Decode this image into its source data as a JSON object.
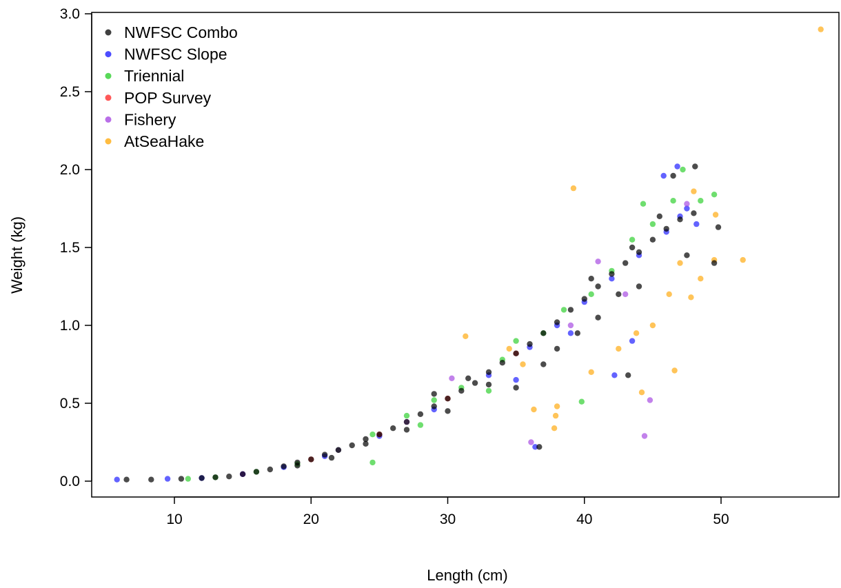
{
  "chart_data": {
    "type": "scatter",
    "title": "",
    "xlabel": "Length (cm)",
    "ylabel": "Weight (kg)",
    "xlim": [
      5,
      57
    ],
    "ylim": [
      -0.1,
      3.0
    ],
    "x_ticks": [
      "10",
      "20",
      "30",
      "40",
      "50"
    ],
    "x_tick_values": [
      10,
      20,
      30,
      40,
      50
    ],
    "y_ticks": [
      "0.0",
      "0.5",
      "1.0",
      "1.5",
      "2.0",
      "2.5",
      "3.0"
    ],
    "y_tick_values": [
      0.0,
      0.5,
      1.0,
      1.5,
      2.0,
      2.5,
      3.0
    ],
    "grid": false,
    "legend_position": "top-left",
    "series": [
      {
        "name": "NWFSC Combo",
        "color": "#000000",
        "points": [
          [
            6.5,
            0.01
          ],
          [
            8.3,
            0.01
          ],
          [
            10.5,
            0.015
          ],
          [
            12,
            0.02
          ],
          [
            13,
            0.025
          ],
          [
            14,
            0.03
          ],
          [
            15,
            0.045
          ],
          [
            16,
            0.06
          ],
          [
            17,
            0.075
          ],
          [
            18,
            0.095
          ],
          [
            19,
            0.12
          ],
          [
            20,
            0.14
          ],
          [
            21,
            0.17
          ],
          [
            22,
            0.2
          ],
          [
            23,
            0.23
          ],
          [
            24,
            0.27
          ],
          [
            25,
            0.3
          ],
          [
            26,
            0.34
          ],
          [
            27,
            0.38
          ],
          [
            28,
            0.43
          ],
          [
            29,
            0.48
          ],
          [
            30,
            0.53
          ],
          [
            31,
            0.58
          ],
          [
            32,
            0.63
          ],
          [
            33,
            0.7
          ],
          [
            34,
            0.76
          ],
          [
            35,
            0.82
          ],
          [
            36,
            0.88
          ],
          [
            37,
            0.95
          ],
          [
            38,
            1.02
          ],
          [
            39,
            1.1
          ],
          [
            40,
            1.17
          ],
          [
            41,
            1.25
          ],
          [
            42,
            1.33
          ],
          [
            43,
            1.4
          ],
          [
            44,
            1.47
          ],
          [
            45,
            1.55
          ],
          [
            46,
            1.62
          ],
          [
            47,
            1.68
          ],
          [
            48,
            1.72
          ],
          [
            46.5,
            1.96
          ],
          [
            48.1,
            2.02
          ],
          [
            49.8,
            1.63
          ],
          [
            49.5,
            1.4
          ],
          [
            36.7,
            0.22
          ],
          [
            43.2,
            0.68
          ],
          [
            35,
            0.6
          ],
          [
            38,
            0.85
          ],
          [
            41,
            1.05
          ],
          [
            42.5,
            1.2
          ],
          [
            44,
            1.25
          ],
          [
            39.5,
            0.95
          ],
          [
            37,
            0.75
          ],
          [
            33,
            0.62
          ],
          [
            30,
            0.45
          ],
          [
            27,
            0.33
          ],
          [
            24,
            0.24
          ],
          [
            21.5,
            0.15
          ],
          [
            19,
            0.1
          ],
          [
            43.5,
            1.5
          ],
          [
            40.5,
            1.3
          ],
          [
            45.5,
            1.7
          ],
          [
            47.5,
            1.45
          ],
          [
            29,
            0.56
          ],
          [
            31.5,
            0.66
          ]
        ]
      },
      {
        "name": "NWFSC Slope",
        "color": "#1010ff",
        "points": [
          [
            5.8,
            0.01
          ],
          [
            9.5,
            0.015
          ],
          [
            12,
            0.02
          ],
          [
            15,
            0.045
          ],
          [
            18,
            0.09
          ],
          [
            21,
            0.16
          ],
          [
            25,
            0.29
          ],
          [
            29,
            0.46
          ],
          [
            33,
            0.68
          ],
          [
            36,
            0.86
          ],
          [
            38,
            1.0
          ],
          [
            40,
            1.15
          ],
          [
            42,
            1.3
          ],
          [
            44,
            1.45
          ],
          [
            46,
            1.6
          ],
          [
            47,
            1.7
          ],
          [
            47.5,
            1.75
          ],
          [
            46.8,
            2.02
          ],
          [
            45.8,
            1.96
          ],
          [
            48.2,
            1.65
          ],
          [
            36.4,
            0.22
          ],
          [
            42.2,
            0.68
          ],
          [
            43.5,
            0.9
          ],
          [
            39,
            0.95
          ],
          [
            35,
            0.65
          ]
        ]
      },
      {
        "name": "Triennial",
        "color": "#22cc22",
        "points": [
          [
            11,
            0.015
          ],
          [
            13,
            0.025
          ],
          [
            16,
            0.06
          ],
          [
            19,
            0.11
          ],
          [
            22,
            0.2
          ],
          [
            24.5,
            0.3
          ],
          [
            27,
            0.42
          ],
          [
            29,
            0.52
          ],
          [
            31,
            0.6
          ],
          [
            34,
            0.78
          ],
          [
            37,
            0.95
          ],
          [
            38.5,
            1.1
          ],
          [
            40.5,
            1.2
          ],
          [
            42,
            1.35
          ],
          [
            43.5,
            1.55
          ],
          [
            45,
            1.65
          ],
          [
            46.5,
            1.8
          ],
          [
            47.2,
            2.0
          ],
          [
            49.5,
            1.84
          ],
          [
            48.5,
            1.8
          ],
          [
            44.3,
            1.78
          ],
          [
            39.8,
            0.51
          ],
          [
            24.5,
            0.12
          ],
          [
            28,
            0.36
          ],
          [
            35,
            0.9
          ],
          [
            33,
            0.58
          ]
        ]
      },
      {
        "name": "POP Survey",
        "color": "#ff2020",
        "points": [
          [
            20,
            0.14
          ],
          [
            25,
            0.3
          ],
          [
            30,
            0.53
          ],
          [
            35,
            0.82
          ]
        ]
      },
      {
        "name": "Fishery",
        "color": "#a23fe0",
        "points": [
          [
            15,
            0.045
          ],
          [
            22,
            0.2
          ],
          [
            27,
            0.38
          ],
          [
            30.3,
            0.66
          ],
          [
            36.1,
            0.25
          ],
          [
            44.4,
            0.29
          ],
          [
            44.8,
            0.52
          ],
          [
            41,
            1.41
          ],
          [
            47.5,
            1.78
          ],
          [
            39,
            1.0
          ],
          [
            43,
            1.2
          ]
        ]
      },
      {
        "name": "AtSeaHake",
        "color": "#ffa500",
        "points": [
          [
            57.3,
            2.9
          ],
          [
            39.2,
            1.88
          ],
          [
            31.3,
            0.93
          ],
          [
            51.6,
            1.42
          ],
          [
            49.5,
            1.42
          ],
          [
            48,
            1.86
          ],
          [
            46.6,
            0.71
          ],
          [
            44.2,
            0.57
          ],
          [
            38,
            0.48
          ],
          [
            37.9,
            0.42
          ],
          [
            37.8,
            0.34
          ],
          [
            36.3,
            0.46
          ],
          [
            40.5,
            0.7
          ],
          [
            43.8,
            0.95
          ],
          [
            46.2,
            1.2
          ],
          [
            47.8,
            1.18
          ],
          [
            48.5,
            1.3
          ],
          [
            49.6,
            1.71
          ],
          [
            45,
            1.0
          ],
          [
            42.5,
            0.85
          ],
          [
            34.5,
            0.85
          ],
          [
            35.5,
            0.75
          ],
          [
            47,
            1.4
          ]
        ]
      }
    ]
  }
}
